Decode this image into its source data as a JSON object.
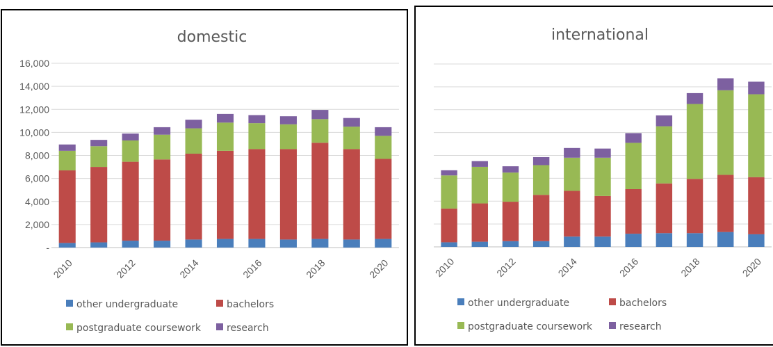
{
  "chart_data": [
    {
      "type": "bar",
      "stacked": true,
      "title": "domestic",
      "categories": [
        "2010",
        "2011",
        "2012",
        "2013",
        "2014",
        "2015",
        "2016",
        "2017",
        "2018",
        "2019",
        "2020"
      ],
      "x_tick_labels": [
        "2010",
        "",
        "2012",
        "",
        "2014",
        "",
        "2016",
        "",
        "2018",
        "",
        "2020"
      ],
      "y_tick_labels": [
        "-",
        "2,000",
        "4,000",
        "6,000",
        "8,000",
        "10,000",
        "12,000",
        "14,000",
        "16,000"
      ],
      "ylim": [
        0,
        16000
      ],
      "grid": true,
      "legend_position": "bottom",
      "series": [
        {
          "name": "other undergraduate",
          "color": "#4a7ebb",
          "values": [
            400,
            450,
            600,
            600,
            700,
            750,
            750,
            700,
            750,
            700,
            750
          ]
        },
        {
          "name": "bachelors",
          "color": "#be4b48",
          "values": [
            6300,
            6550,
            6850,
            7050,
            7450,
            7650,
            7800,
            7850,
            8350,
            7850,
            6950
          ]
        },
        {
          "name": "postgraduate coursework",
          "color": "#98b954",
          "values": [
            1700,
            1800,
            1850,
            2150,
            2200,
            2450,
            2250,
            2150,
            2050,
            1950,
            2000
          ]
        },
        {
          "name": "research",
          "color": "#7d60a0",
          "values": [
            550,
            550,
            600,
            650,
            750,
            750,
            700,
            700,
            800,
            750,
            750
          ]
        }
      ]
    },
    {
      "type": "bar",
      "stacked": true,
      "title": "international",
      "categories": [
        "2010",
        "2011",
        "2012",
        "2013",
        "2014",
        "2015",
        "2016",
        "2017",
        "2018",
        "2019",
        "2020"
      ],
      "x_tick_labels": [
        "2010",
        "",
        "2012",
        "",
        "2014",
        "",
        "2016",
        "",
        "2018",
        "",
        "2020"
      ],
      "y_tick_labels": [
        "",
        "",
        "",
        "",
        "",
        "",
        "",
        "",
        ""
      ],
      "ylim": [
        0,
        16000
      ],
      "grid": true,
      "legend_position": "bottom",
      "series": [
        {
          "name": "other undergraduate",
          "color": "#4a7ebb",
          "values": [
            400,
            450,
            500,
            500,
            900,
            900,
            1150,
            1200,
            1200,
            1300,
            1100
          ]
        },
        {
          "name": "bachelors",
          "color": "#be4b48",
          "values": [
            2950,
            3350,
            3450,
            4050,
            4000,
            3550,
            3900,
            4350,
            4750,
            5000,
            5000
          ]
        },
        {
          "name": "postgraduate coursework",
          "color": "#98b954",
          "values": [
            2900,
            3200,
            2550,
            2600,
            2900,
            3350,
            4050,
            5000,
            6550,
            7400,
            7250
          ]
        },
        {
          "name": "research",
          "color": "#7d60a0",
          "values": [
            450,
            500,
            550,
            700,
            850,
            800,
            850,
            950,
            950,
            1050,
            1100
          ]
        }
      ]
    }
  ]
}
